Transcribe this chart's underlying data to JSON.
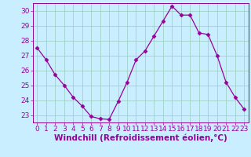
{
  "x": [
    0,
    1,
    2,
    3,
    4,
    5,
    6,
    7,
    8,
    9,
    10,
    11,
    12,
    13,
    14,
    15,
    16,
    17,
    18,
    19,
    20,
    21,
    22,
    23
  ],
  "y": [
    27.5,
    26.7,
    25.7,
    25.0,
    24.2,
    23.6,
    22.9,
    22.75,
    22.7,
    23.9,
    25.2,
    26.7,
    27.3,
    28.3,
    29.3,
    30.3,
    29.7,
    29.7,
    28.5,
    28.4,
    27.0,
    25.2,
    24.2,
    23.4
  ],
  "line_color": "#990099",
  "marker": "D",
  "marker_size": 2.5,
  "bg_color": "#c8eeff",
  "grid_color": "#99ccbb",
  "axis_color": "#990099",
  "tick_color": "#990099",
  "xlabel": "Windchill (Refroidissement éolien,°C)",
  "xlim": [
    -0.5,
    23.5
  ],
  "ylim": [
    22.5,
    30.5
  ],
  "yticks": [
    23,
    24,
    25,
    26,
    27,
    28,
    29,
    30
  ],
  "xticks": [
    0,
    1,
    2,
    3,
    4,
    5,
    6,
    7,
    8,
    9,
    10,
    11,
    12,
    13,
    14,
    15,
    16,
    17,
    18,
    19,
    20,
    21,
    22,
    23
  ],
  "tick_fontsize": 6.5,
  "xlabel_fontsize": 7.5
}
